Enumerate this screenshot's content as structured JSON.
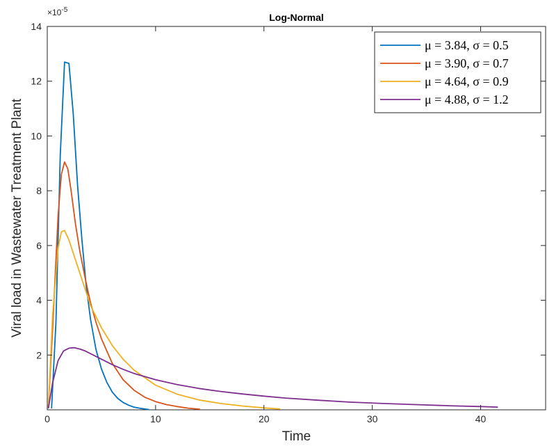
{
  "chart_data": {
    "type": "line",
    "title": "Log-Normal",
    "xlabel": "Time",
    "ylabel": "Viral load in Wastewater Treatment Plant",
    "y_multiplier_label": "×10",
    "y_multiplier_exponent": "-5",
    "xlim": [
      0,
      46
    ],
    "ylim": [
      0,
      14
    ],
    "x_ticks": [
      0,
      10,
      20,
      30,
      40
    ],
    "x_tick_labels": [
      "0",
      "10",
      "20",
      "30",
      "40"
    ],
    "y_ticks": [
      2,
      4,
      6,
      8,
      10,
      12,
      14
    ],
    "y_tick_labels": [
      "2",
      "4",
      "6",
      "8",
      "10",
      "12",
      "14"
    ],
    "grid": false,
    "legend_position": "top-right",
    "series": [
      {
        "name": "μ = 3.84, σ = 0.5",
        "color": "#0072BD",
        "x": [
          0.4,
          0.8,
          1.2,
          1.6,
          2.0,
          2.4,
          2.8,
          3.2,
          3.6,
          4.0,
          4.5,
          5.0,
          5.5,
          6.0,
          6.5,
          7.0,
          7.5,
          8.0,
          8.5,
          9.0,
          9.4
        ],
        "y": [
          0.05,
          3.2,
          9.3,
          12.7,
          12.65,
          10.8,
          8.2,
          6.2,
          4.5,
          3.3,
          2.2,
          1.5,
          1.0,
          0.65,
          0.42,
          0.27,
          0.17,
          0.1,
          0.06,
          0.03,
          0.01
        ]
      },
      {
        "name": "μ = 3.90, σ = 0.7",
        "color": "#D95319",
        "x": [
          0.1,
          0.5,
          1.0,
          1.3,
          1.6,
          1.9,
          2.2,
          2.6,
          3.0,
          3.5,
          4.0,
          4.5,
          5.0,
          6.0,
          7.0,
          8.0,
          9.0,
          10.0,
          11.0,
          12.0,
          13.0,
          14.1
        ],
        "y": [
          0.1,
          3.0,
          7.1,
          8.6,
          9.05,
          8.8,
          8.0,
          6.8,
          5.8,
          4.8,
          3.9,
          3.2,
          2.6,
          1.7,
          1.1,
          0.72,
          0.46,
          0.3,
          0.19,
          0.12,
          0.06,
          0.02
        ]
      },
      {
        "name": "μ = 4.64, σ = 0.9",
        "color": "#EDB120",
        "x": [
          0.1,
          0.5,
          1.0,
          1.3,
          1.6,
          2.0,
          2.5,
          3.0,
          3.5,
          4.0,
          5.0,
          6.0,
          7.0,
          8.0,
          10.0,
          12.0,
          14.0,
          16.0,
          18.0,
          20.0,
          21.5
        ],
        "y": [
          0.1,
          3.5,
          5.9,
          6.5,
          6.55,
          6.2,
          5.6,
          5.0,
          4.4,
          3.8,
          3.0,
          2.35,
          1.85,
          1.45,
          0.9,
          0.57,
          0.36,
          0.23,
          0.14,
          0.07,
          0.03
        ]
      },
      {
        "name": "μ = 4.88, σ = 1.2",
        "color": "#7E2F8E",
        "x": [
          0.1,
          0.5,
          1.0,
          1.5,
          2.0,
          2.5,
          3.0,
          3.5,
          4.0,
          5.0,
          6.0,
          7.0,
          8.0,
          10.0,
          12.0,
          14.0,
          16.0,
          18.0,
          20.0,
          22.0,
          25.0,
          28.0,
          31.0,
          34.0,
          37.0,
          40.0,
          41.6
        ],
        "y": [
          0.05,
          1.0,
          1.8,
          2.15,
          2.25,
          2.27,
          2.22,
          2.15,
          2.05,
          1.85,
          1.65,
          1.48,
          1.33,
          1.1,
          0.92,
          0.78,
          0.67,
          0.58,
          0.5,
          0.43,
          0.35,
          0.28,
          0.23,
          0.19,
          0.15,
          0.12,
          0.1
        ]
      }
    ]
  }
}
